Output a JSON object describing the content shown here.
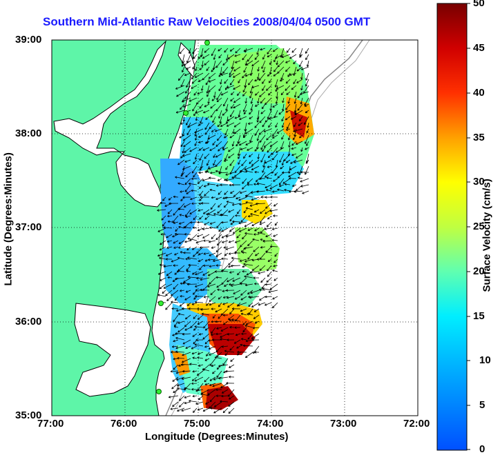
{
  "title": "Southern Mid-Atlantic Raw Velocities 2008/04/04 0500 GMT",
  "xlabel": "Longitude (Degrees:Minutes)",
  "ylabel": "Latitude (Degrees:Minutes)",
  "x_ticks": [
    "77:00",
    "76:00",
    "75:00",
    "74:00",
    "73:00",
    "72:00"
  ],
  "y_ticks": [
    "39:00",
    "38:00",
    "37:00",
    "36:00",
    "35:00"
  ],
  "colorbar": {
    "label": "Surface Velocity (cm/s)",
    "ticks": [
      "0",
      "5",
      "10",
      "15",
      "20",
      "25",
      "30",
      "35",
      "40",
      "45",
      "50"
    ],
    "colors": [
      "#0050ff",
      "#0090ff",
      "#00d8ff",
      "#40ffd0",
      "#a0ff60",
      "#f0ff20",
      "#ffb000",
      "#ff4000",
      "#c00000",
      "#7a0000"
    ]
  },
  "map": {
    "land_color": "#5ef5a8",
    "sea_color": "#ffffff",
    "grid": "dotted"
  },
  "stations": [
    "station-1",
    "station-2",
    "station-3",
    "station-4"
  ]
}
